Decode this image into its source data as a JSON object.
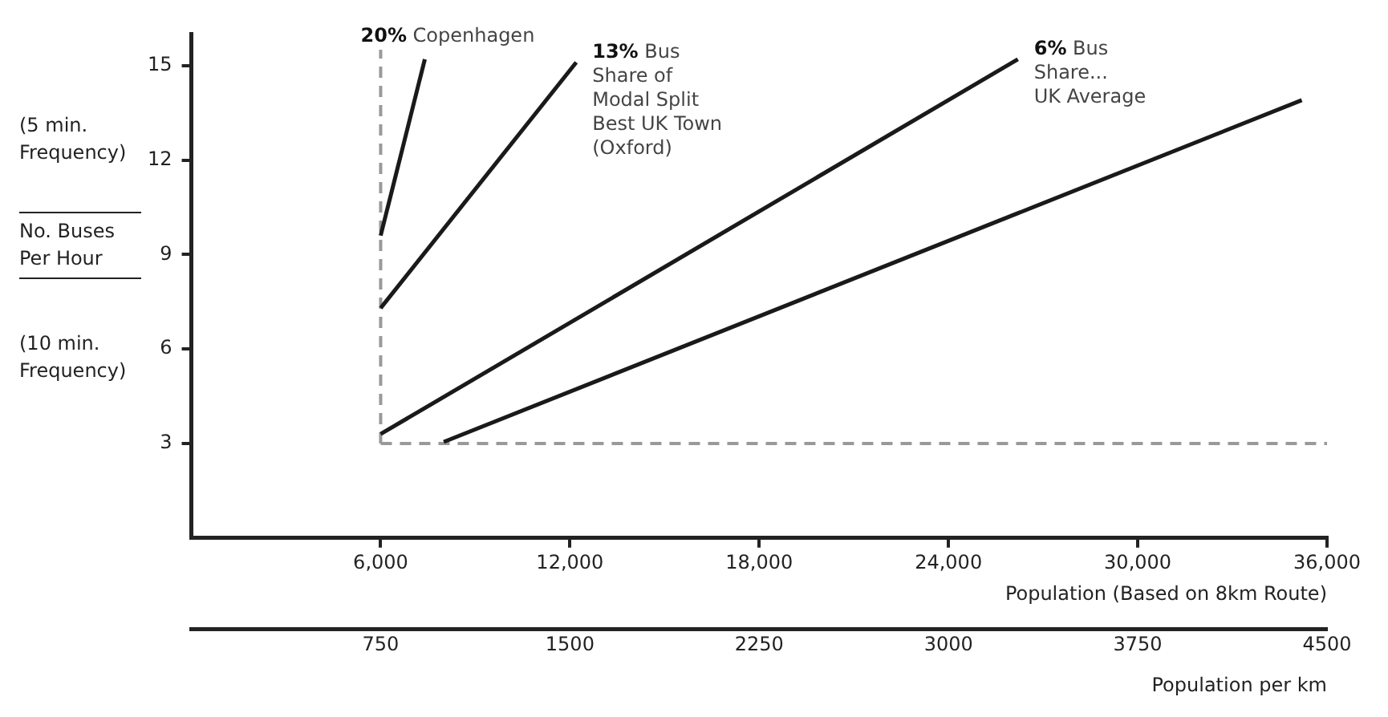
{
  "chart_data": {
    "type": "line",
    "ylabel": "No. Buses Per Hour",
    "xlabel": "Population (Based on 8km Route)",
    "x2label": "Population per km",
    "annotations": [
      "(5 min. Frequency)",
      "(10 min. Frequency)"
    ],
    "series": [
      {
        "name": "20% Copenhagen",
        "color": "#1a1a1a",
        "x": [
          6000,
          7400
        ],
        "values": [
          9.6,
          15.2
        ]
      },
      {
        "name": "13% Bus\nShare of\nModal Split\nBest UK Town\n(Oxford)",
        "color": "#1a1a1a",
        "x": [
          6000,
          12200
        ],
        "values": [
          7.3,
          15.1
        ]
      },
      {
        "name": "6% Bus\nShare...\nUK Average",
        "color": "#1a1a1a",
        "x": [
          6000,
          26200
        ],
        "values": [
          3.3,
          15.2
        ]
      },
      {
        "color": "#1a1a1a",
        "x": [
          8000,
          35200
        ],
        "values": [
          3.05,
          13.9
        ]
      }
    ],
    "xlim": [
      0,
      36000
    ],
    "xticks": [
      {
        "value": 6000,
        "label": "6,000"
      },
      {
        "value": 12000,
        "label": "12,000"
      },
      {
        "value": 18000,
        "label": "18,000"
      },
      {
        "value": 24000,
        "label": "24,000"
      },
      {
        "value": 30000,
        "label": "30,000"
      },
      {
        "value": 36000,
        "label": "36,000"
      }
    ],
    "x2lim": [
      0,
      4500
    ],
    "x2ticks": [
      750,
      1500,
      2250,
      3000,
      3750,
      4500
    ],
    "ylim": [
      0,
      16
    ],
    "yticks": [
      3,
      6,
      9,
      12,
      15
    ],
    "ref_lines": [
      {
        "axis": "x",
        "value": 6000,
        "color": "#999999",
        "line_style": "dashed"
      },
      {
        "axis": "y",
        "value": 3,
        "color": "#999999",
        "line_style": "dashed"
      }
    ],
    "marker": "none",
    "line_style": "solid",
    "grid": false,
    "legend": false
  }
}
